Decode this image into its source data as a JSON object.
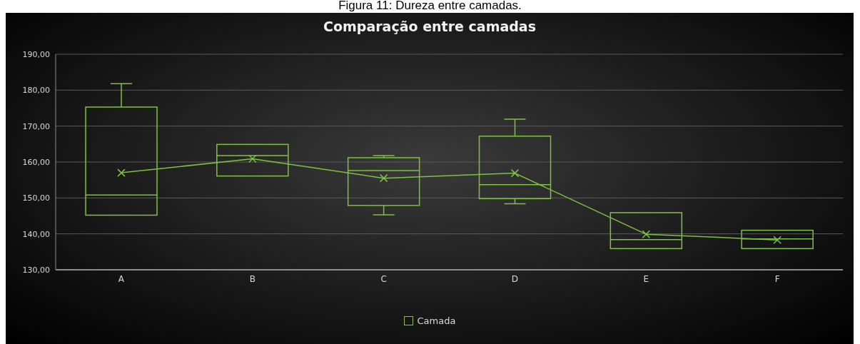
{
  "chart_data": {
    "type": "box",
    "title": "Comparação entre camadas",
    "annotations": [
      "Figura 11: Dureza entre camadas."
    ],
    "categories": [
      "A",
      "B",
      "C",
      "D",
      "E",
      "F"
    ],
    "series": [
      {
        "name": "Camada",
        "color": "#7dc242",
        "boxes": [
          {
            "low": 145.2,
            "q1": 145.2,
            "median": 150.8,
            "q3": 175.3,
            "high": 181.8,
            "mean": 157.0
          },
          {
            "low": 156.1,
            "q1": 156.1,
            "median": 161.8,
            "q3": 164.9,
            "high": 164.9,
            "mean": 160.9
          },
          {
            "low": 145.3,
            "q1": 147.9,
            "median": 157.6,
            "q3": 161.2,
            "high": 161.8,
            "mean": 155.5
          },
          {
            "low": 148.4,
            "q1": 149.8,
            "median": 153.7,
            "q3": 167.2,
            "high": 171.9,
            "mean": 156.9
          },
          {
            "low": 135.9,
            "q1": 135.9,
            "median": 138.4,
            "q3": 145.9,
            "high": 145.9,
            "mean": 139.9
          },
          {
            "low": 135.9,
            "q1": 135.9,
            "median": 138.6,
            "q3": 141.0,
            "high": 141.0,
            "mean": 138.3
          }
        ]
      },
      {
        "type": "line",
        "color": "#7dc242",
        "values": [
          157.0,
          160.9,
          155.5,
          156.9,
          139.9,
          138.3
        ]
      }
    ],
    "ylim": [
      130,
      190
    ],
    "yticks": [
      {
        "value": 130,
        "label": "130,00"
      },
      {
        "value": 140,
        "label": "140,00"
      },
      {
        "value": 150,
        "label": "150,00"
      },
      {
        "value": 160,
        "label": "160,00"
      },
      {
        "value": 170,
        "label": "170,00"
      },
      {
        "value": 180,
        "label": "180,00"
      },
      {
        "value": 190,
        "label": "190,00"
      }
    ],
    "grid": "y",
    "legend": "bottom"
  }
}
